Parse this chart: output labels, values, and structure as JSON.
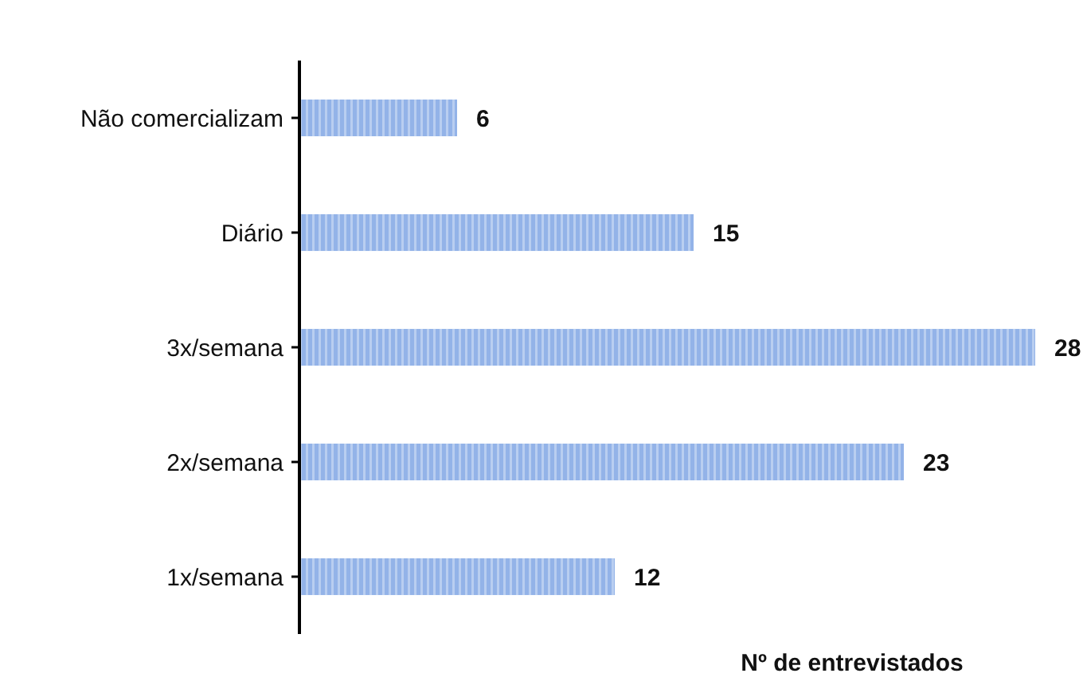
{
  "chart_data": {
    "type": "bar",
    "orientation": "horizontal",
    "xlabel": "Nº de entrevistados",
    "categories": [
      "Não comercializam",
      "Diário",
      "3x/semana",
      "2x/semana",
      "1x/semana"
    ],
    "values": [
      6,
      15,
      28,
      23,
      12
    ],
    "color": "#6f9ae0",
    "data_labels": true
  }
}
